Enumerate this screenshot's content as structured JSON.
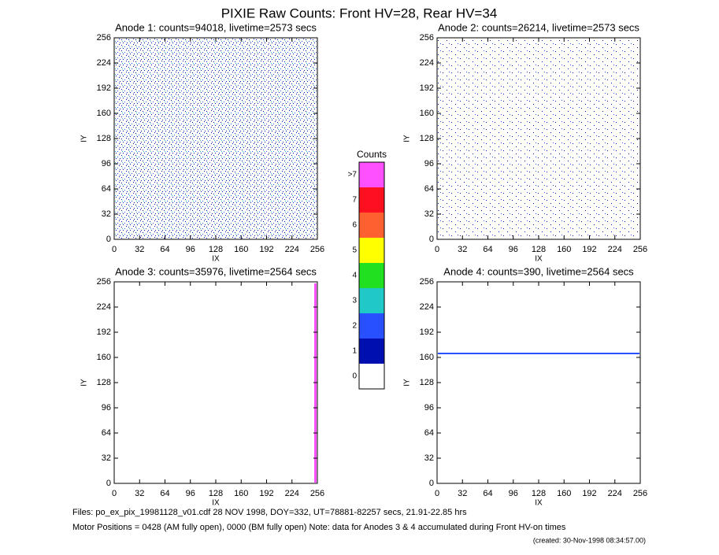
{
  "title": "PIXIE Raw Counts:  Front HV=28, Rear HV=34",
  "chart_data": [
    {
      "type": "heatmap",
      "title": "Anode 1: counts=94018, livetime=2573 secs",
      "x_label": "IX",
      "y_label": "IY",
      "xlim": [
        0,
        256
      ],
      "ylim": [
        0,
        256
      ],
      "xticks": [
        0,
        32,
        64,
        96,
        128,
        160,
        192,
        224,
        256
      ],
      "yticks": [
        0,
        32,
        64,
        96,
        128,
        160,
        192,
        224,
        256
      ]
    },
    {
      "type": "heatmap",
      "title": "Anode 2: counts=26214, livetime=2573 secs",
      "x_label": "IX",
      "y_label": "IY",
      "xlim": [
        0,
        256
      ],
      "ylim": [
        0,
        256
      ],
      "xticks": [
        0,
        32,
        64,
        96,
        128,
        160,
        192,
        224,
        256
      ],
      "yticks": [
        0,
        32,
        64,
        96,
        128,
        160,
        192,
        224,
        256
      ]
    },
    {
      "type": "heatmap",
      "title": "Anode 3: counts=35976, livetime=2564 secs",
      "x_label": "IX",
      "y_label": "IY",
      "xlim": [
        0,
        256
      ],
      "ylim": [
        0,
        256
      ],
      "xticks": [
        0,
        32,
        64,
        96,
        128,
        160,
        192,
        224,
        256
      ],
      "yticks": [
        0,
        32,
        64,
        96,
        128,
        160,
        192,
        224,
        256
      ]
    },
    {
      "type": "heatmap",
      "title": "Anode 4: counts=390, livetime=2564 secs",
      "x_label": "IX",
      "y_label": "IY",
      "xlim": [
        0,
        256
      ],
      "ylim": [
        0,
        256
      ],
      "xticks": [
        0,
        32,
        64,
        96,
        128,
        160,
        192,
        224,
        256
      ],
      "yticks": [
        0,
        32,
        64,
        96,
        128,
        160,
        192,
        224,
        256
      ]
    },
    {
      "type": "colorbar",
      "title": "Counts",
      "categories": [
        "0",
        "1",
        "2",
        "3",
        "4",
        "5",
        "6",
        "7",
        ">7"
      ],
      "colors": [
        "#ffffff",
        "#0010b0",
        "#2850ff",
        "#20c8c8",
        "#20e020",
        "#ffff00",
        "#ff6030",
        "#ff1020",
        "#ff50ff"
      ]
    }
  ],
  "footer": {
    "files": "Files: po_ex_pix_19981128_v01.cdf    28 NOV 1998, DOY=332, UT=78881-82257 secs, 21.91-22.85 hrs",
    "motor": "Motor Positions = 0428 (AM fully open), 0000 (BM fully open)    Note: data for Anodes 3 & 4 accumulated during Front HV-on times",
    "created": "(created: 30-Nov-1998 08:34:57.00)"
  }
}
